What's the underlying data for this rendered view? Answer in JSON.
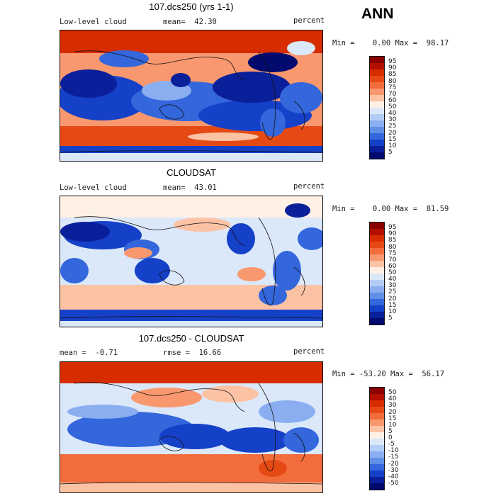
{
  "season": "ANN",
  "panels": [
    {
      "title": "107.dcs250 (yrs 1-1)",
      "left_label": "Low-level cloud",
      "center_label": "mean=  42.30",
      "right_label": "percent",
      "minmax": "Min =    0.00 Max =  98.17",
      "colorbar": {
        "labels": [
          "95",
          "90",
          "85",
          "80",
          "75",
          "70",
          "60",
          "50",
          "40",
          "30",
          "25",
          "20",
          "15",
          "10",
          "5"
        ],
        "colors": [
          "#8b0000",
          "#b20f00",
          "#d62c00",
          "#e64a14",
          "#f26c3c",
          "#f9986e",
          "#fcc2a4",
          "#fff0e6",
          "#dbe8fa",
          "#b4cdf6",
          "#8aaef0",
          "#5f8fe6",
          "#3466dc",
          "#1540c8",
          "#0a1f9a",
          "#020a6e"
        ]
      }
    },
    {
      "title": "CLOUDSAT",
      "left_label": "Low-level cloud",
      "center_label": "mean=  43.01",
      "right_label": "percent",
      "minmax": "Min =    0.00 Max =  81.59",
      "colorbar": {
        "labels": [
          "95",
          "90",
          "85",
          "80",
          "75",
          "70",
          "60",
          "50",
          "40",
          "30",
          "25",
          "20",
          "15",
          "10",
          "5"
        ],
        "colors": [
          "#8b0000",
          "#b20f00",
          "#d62c00",
          "#e64a14",
          "#f26c3c",
          "#f9986e",
          "#fcc2a4",
          "#fff0e6",
          "#dbe8fa",
          "#b4cdf6",
          "#8aaef0",
          "#5f8fe6",
          "#3466dc",
          "#1540c8",
          "#0a1f9a",
          "#020a6e"
        ]
      }
    },
    {
      "title": "107.dcs250 - CLOUDSAT",
      "left_label": "mean =  -0.71",
      "center_label": "rmse =  16.66",
      "right_label": "percent",
      "minmax": "Min = -53.20 Max =  56.17",
      "colorbar": {
        "labels": [
          "50",
          "40",
          "30",
          "20",
          "15",
          "10",
          "5",
          "0",
          "-5",
          "-10",
          "-15",
          "-20",
          "-30",
          "-40",
          "-50"
        ],
        "colors": [
          "#8b0000",
          "#b20f00",
          "#d62c00",
          "#e64a14",
          "#f26c3c",
          "#f9986e",
          "#fcc2a4",
          "#fff0e6",
          "#dbe8fa",
          "#b4cdf6",
          "#8aaef0",
          "#5f8fe6",
          "#3466dc",
          "#1540c8",
          "#0a1f9a",
          "#020a6e"
        ]
      }
    }
  ]
}
